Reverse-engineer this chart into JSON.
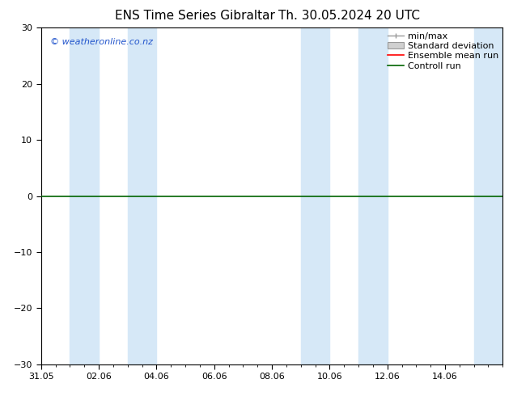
{
  "title_left": "ENS Time Series Gibraltar",
  "title_right": "Th. 30.05.2024 20 UTC",
  "watermark": "© weatheronline.co.nz",
  "ylim": [
    -30,
    30
  ],
  "yticks": [
    -30,
    -20,
    -10,
    0,
    10,
    20,
    30
  ],
  "xtick_labels": [
    "31.05",
    "02.06",
    "04.06",
    "06.06",
    "08.06",
    "10.06",
    "12.06",
    "14.06"
  ],
  "shaded_bands": [
    [
      1,
      2
    ],
    [
      3,
      4
    ],
    [
      9,
      10
    ],
    [
      11,
      12
    ],
    [
      15,
      16
    ]
  ],
  "shade_color": "#d6e8f7",
  "hline_y": 0,
  "hline_color": "#006400",
  "bg_color": "#ffffff",
  "legend_entries": [
    {
      "label": "min/max",
      "color": "#aaaaaa",
      "style": "bracket"
    },
    {
      "label": "Standard deviation",
      "color": "#cccccc",
      "style": "box"
    },
    {
      "label": "Ensemble mean run",
      "color": "#ff0000",
      "style": "line"
    },
    {
      "label": "Controll run",
      "color": "#006400",
      "style": "line"
    }
  ],
  "title_fontsize": 11,
  "tick_fontsize": 8,
  "legend_fontsize": 8,
  "watermark_color": "#2255cc",
  "watermark_fontsize": 8,
  "spine_color": "#000000",
  "xlim": [
    0,
    16
  ],
  "xtick_positions": [
    0,
    2,
    4,
    6,
    8,
    10,
    12,
    14
  ]
}
